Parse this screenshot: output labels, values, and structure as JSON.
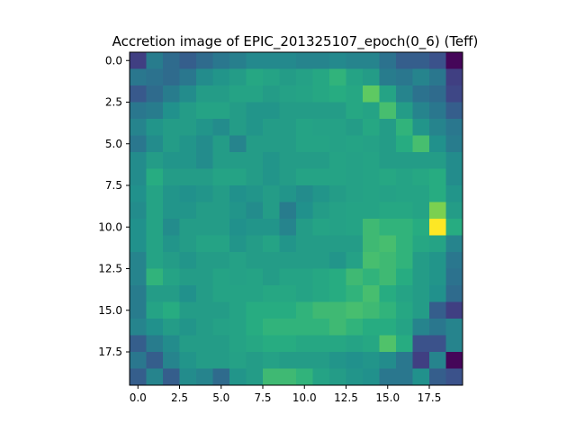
{
  "chart_data": {
    "type": "heatmap",
    "title": "Accretion image of EPIC_201325107_epoch(0_6) (Teff)",
    "colormap": "viridis",
    "colorscale_range": [
      0.0,
      1.0
    ],
    "xlim": [
      -0.5,
      19.5
    ],
    "ylim": [
      19.5,
      -0.5
    ],
    "x_ticks": [
      0.0,
      2.5,
      5.0,
      7.5,
      10.0,
      12.5,
      15.0,
      17.5
    ],
    "x_tick_labels": [
      "0.0",
      "2.5",
      "5.0",
      "7.5",
      "10.0",
      "12.5",
      "15.0",
      "17.5"
    ],
    "y_ticks": [
      0.0,
      2.5,
      5.0,
      7.5,
      10.0,
      12.5,
      15.0,
      17.5
    ],
    "y_tick_labels": [
      "0.0",
      "2.5",
      "5.0",
      "7.5",
      "10.0",
      "12.5",
      "15.0",
      "17.5"
    ],
    "rows": 20,
    "cols": 20,
    "values": [
      [
        0.2,
        0.42,
        0.35,
        0.3,
        0.35,
        0.4,
        0.43,
        0.47,
        0.47,
        0.47,
        0.45,
        0.45,
        0.47,
        0.45,
        0.45,
        0.38,
        0.3,
        0.3,
        0.25,
        0.02
      ],
      [
        0.4,
        0.38,
        0.35,
        0.4,
        0.48,
        0.52,
        0.55,
        0.6,
        0.58,
        0.55,
        0.57,
        0.6,
        0.65,
        0.58,
        0.55,
        0.42,
        0.4,
        0.45,
        0.4,
        0.2
      ],
      [
        0.28,
        0.35,
        0.42,
        0.48,
        0.55,
        0.55,
        0.58,
        0.58,
        0.55,
        0.57,
        0.58,
        0.6,
        0.62,
        0.6,
        0.75,
        0.58,
        0.45,
        0.38,
        0.35,
        0.22
      ],
      [
        0.4,
        0.42,
        0.5,
        0.55,
        0.58,
        0.58,
        0.55,
        0.52,
        0.52,
        0.55,
        0.55,
        0.55,
        0.55,
        0.6,
        0.58,
        0.7,
        0.55,
        0.45,
        0.4,
        0.3
      ],
      [
        0.45,
        0.52,
        0.55,
        0.55,
        0.52,
        0.48,
        0.55,
        0.52,
        0.55,
        0.55,
        0.58,
        0.57,
        0.57,
        0.55,
        0.6,
        0.55,
        0.65,
        0.52,
        0.45,
        0.4
      ],
      [
        0.4,
        0.48,
        0.55,
        0.52,
        0.48,
        0.55,
        0.45,
        0.55,
        0.55,
        0.55,
        0.58,
        0.58,
        0.57,
        0.58,
        0.57,
        0.55,
        0.62,
        0.7,
        0.5,
        0.42
      ],
      [
        0.48,
        0.55,
        0.52,
        0.52,
        0.48,
        0.55,
        0.55,
        0.55,
        0.52,
        0.55,
        0.55,
        0.55,
        0.58,
        0.57,
        0.58,
        0.55,
        0.55,
        0.55,
        0.55,
        0.48
      ],
      [
        0.48,
        0.62,
        0.55,
        0.55,
        0.55,
        0.58,
        0.58,
        0.55,
        0.52,
        0.55,
        0.58,
        0.58,
        0.58,
        0.57,
        0.58,
        0.6,
        0.58,
        0.6,
        0.62,
        0.48
      ],
      [
        0.5,
        0.58,
        0.52,
        0.5,
        0.52,
        0.55,
        0.5,
        0.52,
        0.55,
        0.52,
        0.48,
        0.52,
        0.55,
        0.57,
        0.58,
        0.57,
        0.58,
        0.58,
        0.62,
        0.52
      ],
      [
        0.48,
        0.58,
        0.52,
        0.52,
        0.55,
        0.55,
        0.52,
        0.48,
        0.55,
        0.42,
        0.5,
        0.55,
        0.57,
        0.58,
        0.58,
        0.6,
        0.6,
        0.58,
        0.8,
        0.55
      ],
      [
        0.5,
        0.58,
        0.48,
        0.55,
        0.55,
        0.55,
        0.5,
        0.52,
        0.52,
        0.45,
        0.55,
        0.58,
        0.57,
        0.58,
        0.68,
        0.65,
        0.65,
        0.62,
        1.0,
        0.62
      ],
      [
        0.5,
        0.58,
        0.52,
        0.55,
        0.58,
        0.58,
        0.52,
        0.55,
        0.58,
        0.52,
        0.55,
        0.55,
        0.55,
        0.55,
        0.68,
        0.7,
        0.65,
        0.6,
        0.58,
        0.45
      ],
      [
        0.45,
        0.58,
        0.55,
        0.52,
        0.55,
        0.55,
        0.57,
        0.55,
        0.55,
        0.55,
        0.55,
        0.55,
        0.52,
        0.57,
        0.7,
        0.68,
        0.65,
        0.55,
        0.52,
        0.4
      ],
      [
        0.45,
        0.65,
        0.58,
        0.55,
        0.55,
        0.58,
        0.57,
        0.58,
        0.55,
        0.58,
        0.58,
        0.6,
        0.62,
        0.68,
        0.65,
        0.68,
        0.62,
        0.55,
        0.52,
        0.38
      ],
      [
        0.42,
        0.55,
        0.55,
        0.5,
        0.55,
        0.58,
        0.58,
        0.58,
        0.6,
        0.6,
        0.58,
        0.6,
        0.62,
        0.65,
        0.7,
        0.62,
        0.58,
        0.55,
        0.5,
        0.35
      ],
      [
        0.42,
        0.58,
        0.62,
        0.55,
        0.55,
        0.55,
        0.58,
        0.62,
        0.62,
        0.62,
        0.65,
        0.68,
        0.68,
        0.7,
        0.68,
        0.65,
        0.6,
        0.55,
        0.3,
        0.2
      ],
      [
        0.45,
        0.5,
        0.55,
        0.52,
        0.55,
        0.57,
        0.58,
        0.62,
        0.65,
        0.65,
        0.65,
        0.65,
        0.68,
        0.65,
        0.62,
        0.62,
        0.58,
        0.45,
        0.4,
        0.45
      ],
      [
        0.3,
        0.42,
        0.48,
        0.55,
        0.55,
        0.55,
        0.58,
        0.6,
        0.62,
        0.62,
        0.6,
        0.6,
        0.6,
        0.58,
        0.6,
        0.72,
        0.62,
        0.25,
        0.25,
        0.45
      ],
      [
        0.4,
        0.3,
        0.45,
        0.52,
        0.55,
        0.55,
        0.57,
        0.55,
        0.57,
        0.55,
        0.55,
        0.55,
        0.52,
        0.5,
        0.52,
        0.48,
        0.4,
        0.2,
        0.45,
        0.02
      ],
      [
        0.3,
        0.45,
        0.3,
        0.48,
        0.45,
        0.35,
        0.52,
        0.55,
        0.68,
        0.68,
        0.65,
        0.58,
        0.55,
        0.52,
        0.5,
        0.4,
        0.4,
        0.5,
        0.3,
        0.25
      ]
    ]
  }
}
